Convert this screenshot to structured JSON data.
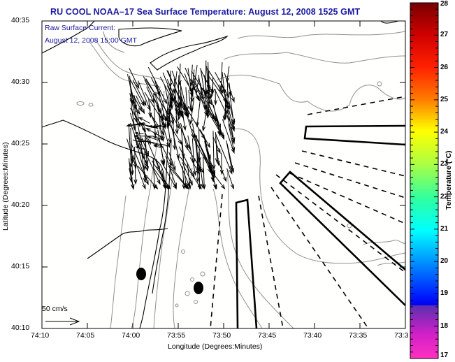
{
  "title": "RU COOL  NOAA–17  Sea Surface Temperature:  August 12, 2008 1525 GMT",
  "annotation": {
    "line1": "Raw Surface Current:",
    "line2": "August 12, 2008 15:00 GMT"
  },
  "scale_arrow": {
    "label": "50 cm/s",
    "icon": "arrow-right-icon"
  },
  "x_axis": {
    "title": "Longitude (Degrees:Minutes)",
    "ticks": [
      "74:10",
      "74:05",
      "74:00",
      "73:55",
      "73:50",
      "73:45",
      "73:40",
      "73:35",
      "73:3"
    ]
  },
  "y_axis": {
    "title": "Latitude (Degrees:Minutes)",
    "ticks": [
      "40:35",
      "40:30",
      "40:25",
      "40:20",
      "40:15",
      "40:10"
    ]
  },
  "colorbar": {
    "title": "Temperature (°C)",
    "min": 17,
    "max": 28,
    "ticks": [
      "28",
      "27",
      "26",
      "25",
      "24",
      "23",
      "22",
      "21",
      "20",
      "19",
      "18",
      "17"
    ],
    "colors": {
      "28": "#7a0000",
      "27": "#d00000",
      "26": "#ff2a00",
      "25": "#ff8000",
      "24": "#ffff00",
      "23": "#c0ff30",
      "22": "#40ff90",
      "21": "#00ffff",
      "20": "#0090ff",
      "19": "#0020ff",
      "18.3": "#0000f0",
      "18.2": "#5030c0",
      "17": "#ff20c0"
    }
  },
  "colors": {
    "title": "#1a1aa0",
    "coast": "#000000",
    "contour": "#909090",
    "arrows": "#000000"
  }
}
